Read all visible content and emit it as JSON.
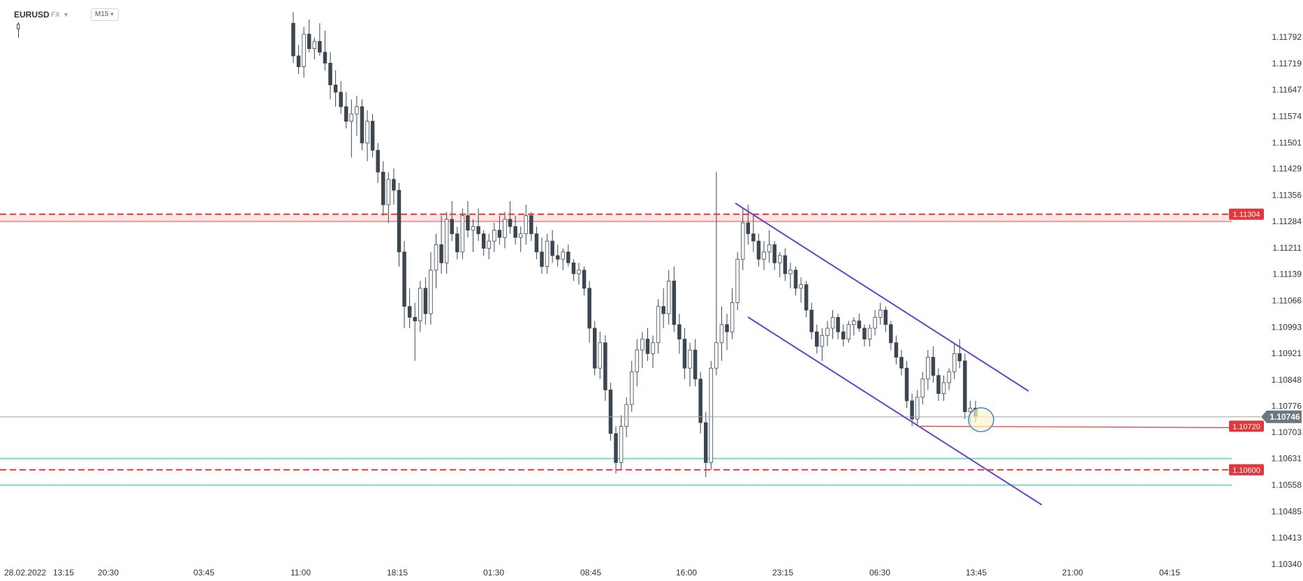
{
  "header": {
    "symbol": "EURUSD",
    "type": "FX",
    "type_caret": "▼",
    "timeframe": "M15",
    "timeframe_caret": "▼"
  },
  "colors": {
    "candle_up_fill": "#ffffff",
    "candle_down_fill": "#3c4650",
    "candle_outline": "#3c4650",
    "resistance": "#e0383b",
    "resistance_zone_fill": "#fde6e6",
    "support_band": "#7fd8c4",
    "channel": "#6b3fd1",
    "current_price_line": "#9aa0a8",
    "current_price_tag": "#6f7780",
    "marker_circle": "#2f8fd8",
    "marker_fill": "#fff4c8",
    "axis_text": "#333333"
  },
  "chart_data": {
    "type": "candlestick",
    "symbol": "EURUSD",
    "timeframe": "M15",
    "y_ticks": [
      "1.11792",
      "1.11719",
      "1.11647",
      "1.11574",
      "1.11501",
      "1.11429",
      "1.11356",
      "1.11284",
      "1.11211",
      "1.11139",
      "1.11066",
      "1.10993",
      "1.10921",
      "1.10848",
      "1.10776",
      "1.10703",
      "1.10631",
      "1.10558",
      "1.10485",
      "1.10413",
      "1.10340"
    ],
    "x_ticks": [
      "28.02.2022",
      "13:15",
      "20:30",
      "03:45",
      "11:00",
      "18:15",
      "01:30",
      "08:45",
      "16:00",
      "23:15",
      "06:30",
      "13:45",
      "21:00",
      "04:15"
    ],
    "ylim": [
      1.1034,
      1.1179
    ],
    "levels": [
      {
        "name": "resistance",
        "value": 1.11304,
        "label": "1.11304"
      },
      {
        "name": "support",
        "value": 1.106,
        "label": "1.10600"
      },
      {
        "name": "recent-low",
        "value": 1.1072,
        "label": "1.10720"
      }
    ],
    "current_price": {
      "value": 1.10746,
      "label": "1.10746"
    },
    "resistance_zone": [
      1.11284,
      1.11304
    ],
    "support_band": [
      1.10558,
      1.10631
    ],
    "channel_lines": [
      {
        "name": "upper",
        "from": {
          "x": "16:45",
          "y": 1.1134
        },
        "to": {
          "x": "17:45",
          "y": 1.1082
        }
      },
      {
        "name": "lower",
        "from": {
          "x": "18:45",
          "y": 1.1101
        },
        "to": {
          "x": "18:30",
          "y": 1.1052
        }
      }
    ],
    "candles": [
      {
        "o": 1.1183,
        "h": 1.1186,
        "l": 1.1172,
        "c": 1.1174
      },
      {
        "o": 1.1174,
        "h": 1.1177,
        "l": 1.1169,
        "c": 1.1171
      },
      {
        "o": 1.1171,
        "h": 1.1182,
        "l": 1.1168,
        "c": 1.118
      },
      {
        "o": 1.118,
        "h": 1.1184,
        "l": 1.1175,
        "c": 1.1176
      },
      {
        "o": 1.1176,
        "h": 1.1179,
        "l": 1.1173,
        "c": 1.1178
      },
      {
        "o": 1.1178,
        "h": 1.1183,
        "l": 1.1174,
        "c": 1.1175
      },
      {
        "o": 1.1175,
        "h": 1.1181,
        "l": 1.117,
        "c": 1.1172
      },
      {
        "o": 1.1172,
        "h": 1.1175,
        "l": 1.1162,
        "c": 1.1166
      },
      {
        "o": 1.1166,
        "h": 1.117,
        "l": 1.116,
        "c": 1.1164
      },
      {
        "o": 1.1164,
        "h": 1.1167,
        "l": 1.1158,
        "c": 1.116
      },
      {
        "o": 1.116,
        "h": 1.1164,
        "l": 1.1154,
        "c": 1.1156
      },
      {
        "o": 1.1156,
        "h": 1.1162,
        "l": 1.1146,
        "c": 1.1158
      },
      {
        "o": 1.1158,
        "h": 1.1163,
        "l": 1.1152,
        "c": 1.116
      },
      {
        "o": 1.116,
        "h": 1.1162,
        "l": 1.1148,
        "c": 1.115
      },
      {
        "o": 1.115,
        "h": 1.1159,
        "l": 1.1145,
        "c": 1.1156
      },
      {
        "o": 1.1156,
        "h": 1.1158,
        "l": 1.1146,
        "c": 1.1148
      },
      {
        "o": 1.1148,
        "h": 1.115,
        "l": 1.1139,
        "c": 1.1142
      },
      {
        "o": 1.1142,
        "h": 1.1145,
        "l": 1.113,
        "c": 1.1133
      },
      {
        "o": 1.1133,
        "h": 1.1142,
        "l": 1.1128,
        "c": 1.114
      },
      {
        "o": 1.114,
        "h": 1.1143,
        "l": 1.1133,
        "c": 1.1137
      },
      {
        "o": 1.1137,
        "h": 1.1139,
        "l": 1.1116,
        "c": 1.112
      },
      {
        "o": 1.112,
        "h": 1.1123,
        "l": 1.1099,
        "c": 1.1105
      },
      {
        "o": 1.1105,
        "h": 1.111,
        "l": 1.1099,
        "c": 1.1102
      },
      {
        "o": 1.1102,
        "h": 1.1106,
        "l": 1.109,
        "c": 1.1101
      },
      {
        "o": 1.1101,
        "h": 1.1112,
        "l": 1.1098,
        "c": 1.111
      },
      {
        "o": 1.111,
        "h": 1.1113,
        "l": 1.11,
        "c": 1.1103
      },
      {
        "o": 1.1103,
        "h": 1.112,
        "l": 1.11,
        "c": 1.1115
      },
      {
        "o": 1.1115,
        "h": 1.1125,
        "l": 1.111,
        "c": 1.1122
      },
      {
        "o": 1.1122,
        "h": 1.113,
        "l": 1.1114,
        "c": 1.1117
      },
      {
        "o": 1.1117,
        "h": 1.1131,
        "l": 1.1114,
        "c": 1.1129
      },
      {
        "o": 1.1129,
        "h": 1.1134,
        "l": 1.1123,
        "c": 1.1125
      },
      {
        "o": 1.1125,
        "h": 1.1127,
        "l": 1.1118,
        "c": 1.112
      },
      {
        "o": 1.112,
        "h": 1.1132,
        "l": 1.1118,
        "c": 1.113
      },
      {
        "o": 1.113,
        "h": 1.1134,
        "l": 1.1124,
        "c": 1.1126
      },
      {
        "o": 1.1126,
        "h": 1.1129,
        "l": 1.112,
        "c": 1.1127
      },
      {
        "o": 1.1127,
        "h": 1.1132,
        "l": 1.1123,
        "c": 1.1125
      },
      {
        "o": 1.1125,
        "h": 1.1126,
        "l": 1.1119,
        "c": 1.1121
      },
      {
        "o": 1.1121,
        "h": 1.1125,
        "l": 1.1118,
        "c": 1.1123
      },
      {
        "o": 1.1123,
        "h": 1.1128,
        "l": 1.112,
        "c": 1.1126
      },
      {
        "o": 1.1126,
        "h": 1.113,
        "l": 1.1122,
        "c": 1.1124
      },
      {
        "o": 1.1124,
        "h": 1.1131,
        "l": 1.1121,
        "c": 1.1129
      },
      {
        "o": 1.1129,
        "h": 1.1134,
        "l": 1.1125,
        "c": 1.1127
      },
      {
        "o": 1.1127,
        "h": 1.113,
        "l": 1.1122,
        "c": 1.1124
      },
      {
        "o": 1.1124,
        "h": 1.1127,
        "l": 1.112,
        "c": 1.1125
      },
      {
        "o": 1.1125,
        "h": 1.1133,
        "l": 1.1122,
        "c": 1.113
      },
      {
        "o": 1.113,
        "h": 1.1131,
        "l": 1.1123,
        "c": 1.1125
      },
      {
        "o": 1.1125,
        "h": 1.1127,
        "l": 1.1118,
        "c": 1.112
      },
      {
        "o": 1.112,
        "h": 1.1124,
        "l": 1.1114,
        "c": 1.1116
      },
      {
        "o": 1.1116,
        "h": 1.1125,
        "l": 1.1114,
        "c": 1.1123
      },
      {
        "o": 1.1123,
        "h": 1.1126,
        "l": 1.1117,
        "c": 1.1119
      },
      {
        "o": 1.1119,
        "h": 1.1122,
        "l": 1.1116,
        "c": 1.1118
      },
      {
        "o": 1.1118,
        "h": 1.1121,
        "l": 1.1115,
        "c": 1.112
      },
      {
        "o": 1.112,
        "h": 1.1122,
        "l": 1.1116,
        "c": 1.1117
      },
      {
        "o": 1.1117,
        "h": 1.1118,
        "l": 1.1112,
        "c": 1.1114
      },
      {
        "o": 1.1114,
        "h": 1.1117,
        "l": 1.1111,
        "c": 1.1115
      },
      {
        "o": 1.1115,
        "h": 1.1116,
        "l": 1.1108,
        "c": 1.111
      },
      {
        "o": 1.111,
        "h": 1.1112,
        "l": 1.1095,
        "c": 1.1099
      },
      {
        "o": 1.1099,
        "h": 1.1101,
        "l": 1.1086,
        "c": 1.1088
      },
      {
        "o": 1.1088,
        "h": 1.1098,
        "l": 1.1085,
        "c": 1.1095
      },
      {
        "o": 1.1095,
        "h": 1.1097,
        "l": 1.1079,
        "c": 1.1082
      },
      {
        "o": 1.1082,
        "h": 1.1084,
        "l": 1.1068,
        "c": 1.107
      },
      {
        "o": 1.107,
        "h": 1.1072,
        "l": 1.1059,
        "c": 1.1062
      },
      {
        "o": 1.1062,
        "h": 1.1075,
        "l": 1.106,
        "c": 1.1072
      },
      {
        "o": 1.1072,
        "h": 1.108,
        "l": 1.1069,
        "c": 1.1078
      },
      {
        "o": 1.1078,
        "h": 1.109,
        "l": 1.1076,
        "c": 1.1087
      },
      {
        "o": 1.1087,
        "h": 1.1096,
        "l": 1.1083,
        "c": 1.1093
      },
      {
        "o": 1.1093,
        "h": 1.1098,
        "l": 1.1088,
        "c": 1.1096
      },
      {
        "o": 1.1096,
        "h": 1.1099,
        "l": 1.109,
        "c": 1.1092
      },
      {
        "o": 1.1092,
        "h": 1.1097,
        "l": 1.1088,
        "c": 1.1095
      },
      {
        "o": 1.1095,
        "h": 1.1107,
        "l": 1.1092,
        "c": 1.1105
      },
      {
        "o": 1.1105,
        "h": 1.111,
        "l": 1.1099,
        "c": 1.1103
      },
      {
        "o": 1.1103,
        "h": 1.1115,
        "l": 1.11,
        "c": 1.1112
      },
      {
        "o": 1.1112,
        "h": 1.1116,
        "l": 1.1098,
        "c": 1.11
      },
      {
        "o": 1.11,
        "h": 1.1103,
        "l": 1.1092,
        "c": 1.1096
      },
      {
        "o": 1.1096,
        "h": 1.1099,
        "l": 1.1085,
        "c": 1.1088
      },
      {
        "o": 1.1088,
        "h": 1.1095,
        "l": 1.1083,
        "c": 1.1093
      },
      {
        "o": 1.1093,
        "h": 1.1096,
        "l": 1.1083,
        "c": 1.1085
      },
      {
        "o": 1.1085,
        "h": 1.1087,
        "l": 1.107,
        "c": 1.1073
      },
      {
        "o": 1.1073,
        "h": 1.1076,
        "l": 1.1058,
        "c": 1.1062
      },
      {
        "o": 1.1062,
        "h": 1.109,
        "l": 1.106,
        "c": 1.1088
      },
      {
        "o": 1.1088,
        "h": 1.1142,
        "l": 1.1086,
        "c": 1.1095
      },
      {
        "o": 1.1095,
        "h": 1.1105,
        "l": 1.109,
        "c": 1.11
      },
      {
        "o": 1.11,
        "h": 1.1103,
        "l": 1.1093,
        "c": 1.1098
      },
      {
        "o": 1.1098,
        "h": 1.111,
        "l": 1.1096,
        "c": 1.1106
      },
      {
        "o": 1.1106,
        "h": 1.112,
        "l": 1.1104,
        "c": 1.1118
      },
      {
        "o": 1.1118,
        "h": 1.1132,
        "l": 1.1115,
        "c": 1.1128
      },
      {
        "o": 1.1128,
        "h": 1.1133,
        "l": 1.1122,
        "c": 1.1125
      },
      {
        "o": 1.1125,
        "h": 1.113,
        "l": 1.112,
        "c": 1.1123
      },
      {
        "o": 1.1123,
        "h": 1.1125,
        "l": 1.1116,
        "c": 1.1118
      },
      {
        "o": 1.1118,
        "h": 1.1123,
        "l": 1.1115,
        "c": 1.112
      },
      {
        "o": 1.112,
        "h": 1.1126,
        "l": 1.1117,
        "c": 1.1122
      },
      {
        "o": 1.1122,
        "h": 1.1123,
        "l": 1.1115,
        "c": 1.1117
      },
      {
        "o": 1.1117,
        "h": 1.112,
        "l": 1.1113,
        "c": 1.1119
      },
      {
        "o": 1.1119,
        "h": 1.1121,
        "l": 1.1112,
        "c": 1.1114
      },
      {
        "o": 1.1114,
        "h": 1.1117,
        "l": 1.111,
        "c": 1.1115
      },
      {
        "o": 1.1115,
        "h": 1.1116,
        "l": 1.1108,
        "c": 1.111
      },
      {
        "o": 1.111,
        "h": 1.1113,
        "l": 1.1106,
        "c": 1.1111
      },
      {
        "o": 1.1111,
        "h": 1.1112,
        "l": 1.1102,
        "c": 1.1104
      },
      {
        "o": 1.1104,
        "h": 1.1106,
        "l": 1.1096,
        "c": 1.1098
      },
      {
        "o": 1.1098,
        "h": 1.11,
        "l": 1.1092,
        "c": 1.1094
      },
      {
        "o": 1.1094,
        "h": 1.1099,
        "l": 1.109,
        "c": 1.1097
      },
      {
        "o": 1.1097,
        "h": 1.1101,
        "l": 1.1094,
        "c": 1.1099
      },
      {
        "o": 1.1099,
        "h": 1.1104,
        "l": 1.1096,
        "c": 1.1102
      },
      {
        "o": 1.1102,
        "h": 1.1103,
        "l": 1.1096,
        "c": 1.1098
      },
      {
        "o": 1.1098,
        "h": 1.11,
        "l": 1.1094,
        "c": 1.1096
      },
      {
        "o": 1.1096,
        "h": 1.1101,
        "l": 1.1095,
        "c": 1.11
      },
      {
        "o": 1.11,
        "h": 1.1102,
        "l": 1.1097,
        "c": 1.1101
      },
      {
        "o": 1.1101,
        "h": 1.1103,
        "l": 1.1098,
        "c": 1.1099
      },
      {
        "o": 1.1099,
        "h": 1.11,
        "l": 1.1094,
        "c": 1.1096
      },
      {
        "o": 1.1096,
        "h": 1.11,
        "l": 1.1094,
        "c": 1.1099
      },
      {
        "o": 1.1099,
        "h": 1.1104,
        "l": 1.1097,
        "c": 1.1102
      },
      {
        "o": 1.1102,
        "h": 1.1106,
        "l": 1.11,
        "c": 1.1104
      },
      {
        "o": 1.1104,
        "h": 1.1105,
        "l": 1.1098,
        "c": 1.11
      },
      {
        "o": 1.11,
        "h": 1.1101,
        "l": 1.1093,
        "c": 1.1095
      },
      {
        "o": 1.1095,
        "h": 1.1097,
        "l": 1.1089,
        "c": 1.1091
      },
      {
        "o": 1.1091,
        "h": 1.1093,
        "l": 1.1086,
        "c": 1.1088
      },
      {
        "o": 1.1088,
        "h": 1.109,
        "l": 1.1077,
        "c": 1.1079
      },
      {
        "o": 1.1079,
        "h": 1.1081,
        "l": 1.1072,
        "c": 1.1074
      },
      {
        "o": 1.1074,
        "h": 1.1082,
        "l": 1.1072,
        "c": 1.108
      },
      {
        "o": 1.108,
        "h": 1.1087,
        "l": 1.1078,
        "c": 1.1085
      },
      {
        "o": 1.1085,
        "h": 1.1093,
        "l": 1.1082,
        "c": 1.1091
      },
      {
        "o": 1.1091,
        "h": 1.1094,
        "l": 1.1084,
        "c": 1.1086
      },
      {
        "o": 1.1086,
        "h": 1.1088,
        "l": 1.1079,
        "c": 1.1081
      },
      {
        "o": 1.1081,
        "h": 1.1086,
        "l": 1.1079,
        "c": 1.1084
      },
      {
        "o": 1.1084,
        "h": 1.1088,
        "l": 1.1082,
        "c": 1.1087
      },
      {
        "o": 1.1087,
        "h": 1.1095,
        "l": 1.1085,
        "c": 1.1092
      },
      {
        "o": 1.1092,
        "h": 1.1096,
        "l": 1.1088,
        "c": 1.109
      },
      {
        "o": 1.109,
        "h": 1.1092,
        "l": 1.1074,
        "c": 1.1076
      },
      {
        "o": 1.1076,
        "h": 1.1079,
        "l": 1.1073,
        "c": 1.1077
      },
      {
        "o": 1.1077,
        "h": 1.1079,
        "l": 1.1073,
        "c": 1.10746
      }
    ]
  }
}
